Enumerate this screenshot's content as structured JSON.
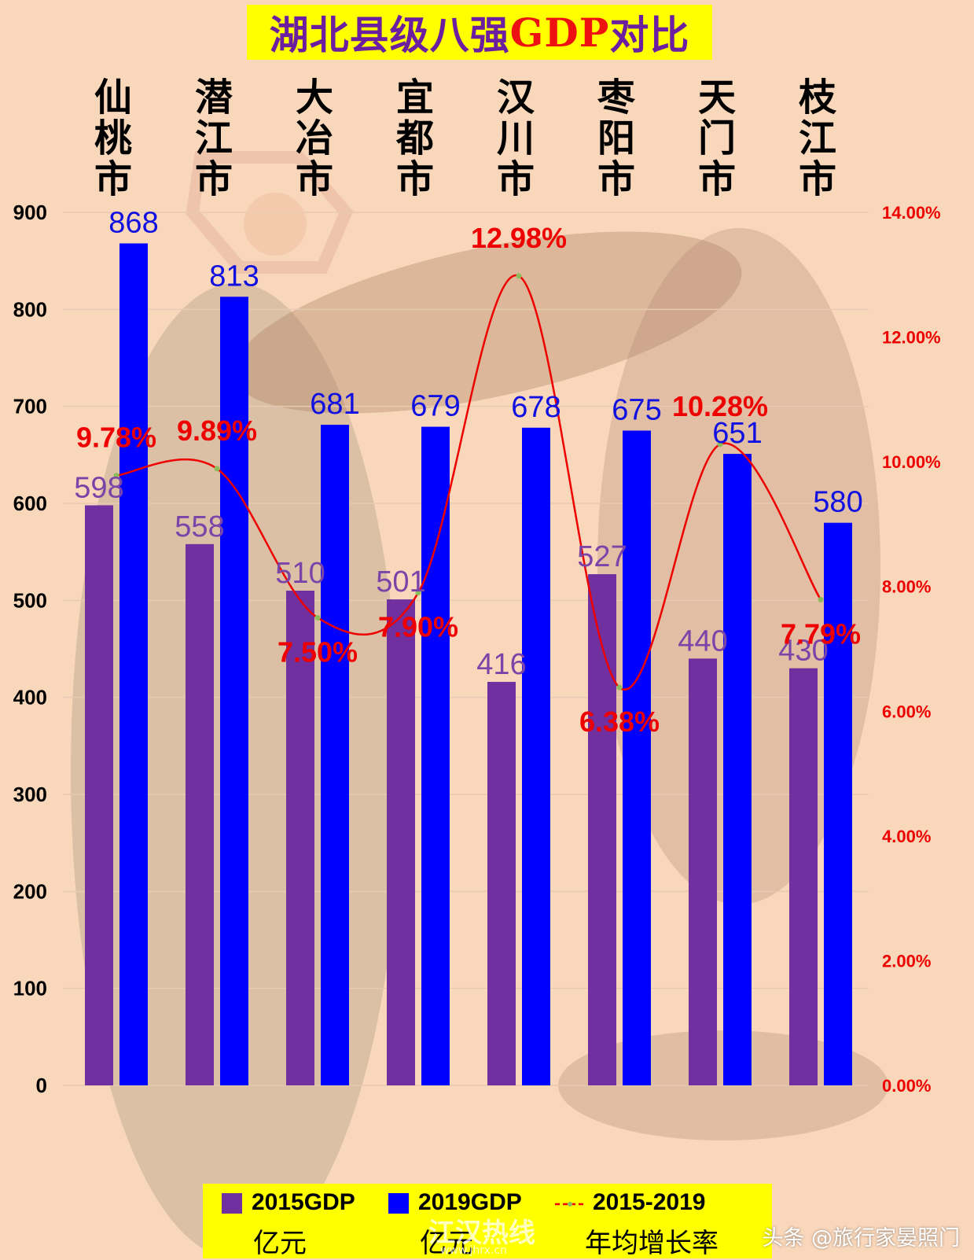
{
  "title": {
    "main": "湖北县级八强",
    "highlight": "GDP",
    "tail": "对比"
  },
  "chart_data": {
    "type": "bar",
    "categories": [
      "仙桃市",
      "潜江市",
      "大冶市",
      "宜都市",
      "汉川市",
      "枣阳市",
      "天门市",
      "枝江市"
    ],
    "series": [
      {
        "name": "2015GDP",
        "unit": "亿元",
        "color": "#7030a0",
        "values": [
          598,
          558,
          510,
          501,
          416,
          527,
          440,
          430
        ]
      },
      {
        "name": "2019GDP",
        "unit": "亿元",
        "color": "#0000ff",
        "values": [
          868,
          813,
          681,
          679,
          678,
          675,
          651,
          580
        ]
      },
      {
        "name": "2015-2019",
        "unit": "年均增长率",
        "type": "line",
        "axis": "right",
        "color": "#ee0000",
        "values": [
          9.78,
          9.89,
          7.5,
          7.9,
          12.98,
          6.38,
          10.28,
          7.79
        ],
        "labels": [
          "9.78%",
          "9.89%",
          "7.50%",
          "7.90%",
          "12.98%",
          "6.38%",
          "10.28%",
          "7.79%"
        ]
      }
    ],
    "ylim_left": [
      0,
      900
    ],
    "yticks_left": [
      "0",
      "100",
      "200",
      "300",
      "400",
      "500",
      "600",
      "700",
      "800",
      "900"
    ],
    "ylim_right": [
      0,
      14
    ],
    "yticks_right": [
      "0.00%",
      "2.00%",
      "4.00%",
      "6.00%",
      "8.00%",
      "10.00%",
      "12.00%",
      "14.00%"
    ],
    "grid": true,
    "legend_position": "bottom"
  },
  "legend": {
    "items": [
      {
        "label": "2015GDP",
        "sub": "亿元",
        "color": "#7030a0"
      },
      {
        "label": "2019GDP",
        "sub": "亿元",
        "color": "#0000ff"
      },
      {
        "label": "2015-2019",
        "sub": "年均增长率",
        "color": "#ee0000"
      }
    ]
  },
  "watermark": {
    "text": "江汉热线",
    "url": "www.jhrx.cn"
  },
  "credit": "头条 @旅行家晏照门"
}
